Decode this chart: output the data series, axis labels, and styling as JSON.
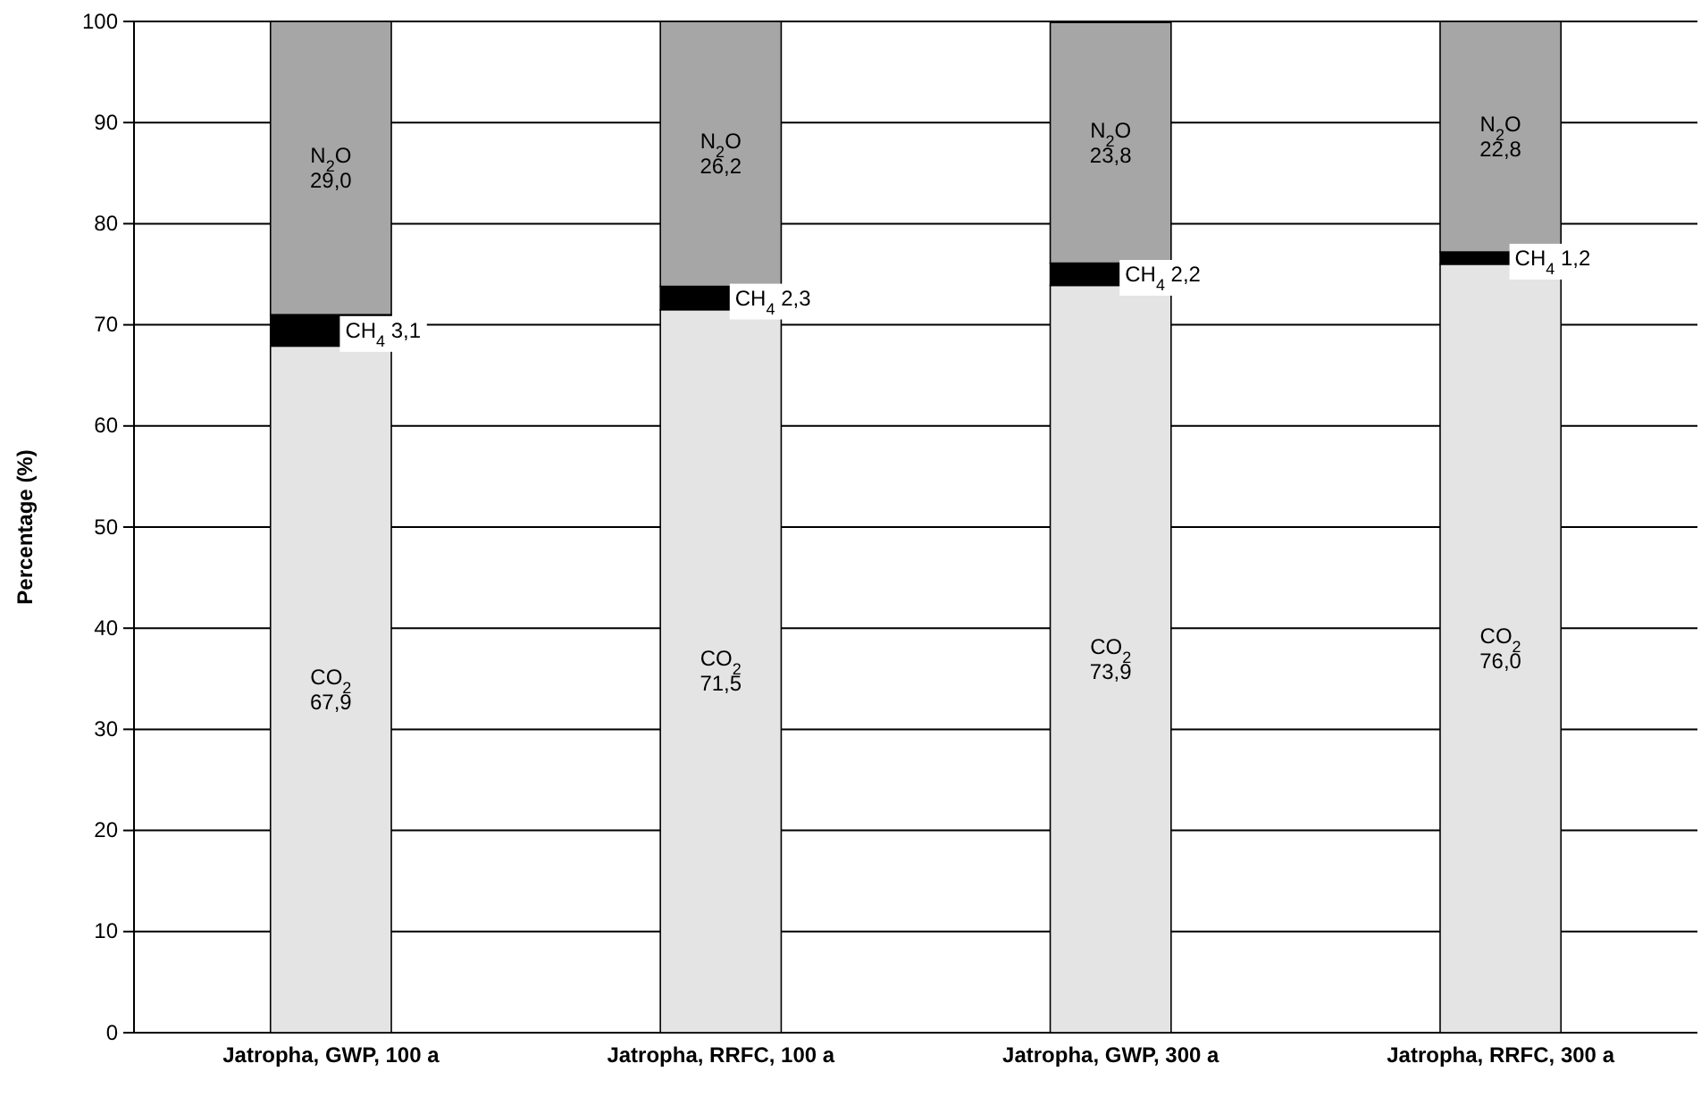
{
  "chart_data": {
    "type": "bar",
    "stacked": true,
    "ylabel": "Percentage (%)",
    "categories": [
      "Jatropha, GWP, 100 a",
      "Jatropha, RRFC, 100 a",
      "Jatropha, GWP, 300 a",
      "Jatropha, RRFC, 300 a"
    ],
    "series": [
      {
        "name": "CO$_{2}$",
        "color": "#e4e4e4",
        "values": [
          67.9,
          71.5,
          73.9,
          76.0
        ],
        "value_labels": [
          "67,9",
          "71,5",
          "73,9",
          "76,0"
        ]
      },
      {
        "name": "CH$_{4}$",
        "color": "#000000",
        "values": [
          3.1,
          2.3,
          2.2,
          1.2
        ],
        "value_labels": [
          "3,1",
          "2,3",
          "2,2",
          "1,2"
        ]
      },
      {
        "name": "N$_{2}$O",
        "color": "#a6a6a6",
        "values": [
          29.0,
          26.2,
          23.8,
          22.8
        ],
        "value_labels": [
          "29,0",
          "26,2",
          "23,8",
          "22,8"
        ]
      }
    ],
    "ylim": [
      0,
      100
    ],
    "yticks": [
      0,
      10,
      20,
      30,
      40,
      50,
      60,
      70,
      80,
      90,
      100
    ],
    "grid": "y"
  }
}
